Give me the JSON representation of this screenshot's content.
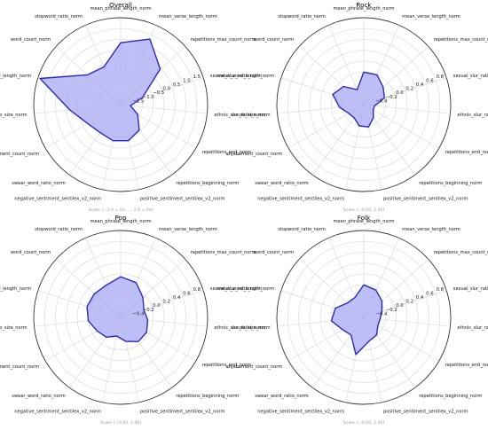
{
  "axes": [
    "mean_phrase_length_norm",
    "mean_verse_length_norm",
    "repetitions_max_count_norm",
    "sexual_slur_ratio_norm",
    "ethnic_slur_ratio_norm",
    "repetitions_end_norm",
    "repetitions_beginning_norm",
    "positive_sentiment_sentilex_v2_norm",
    "negative_sentiment_sentilex_v2_norm",
    "swear_word_ratio_norm",
    "enjabement_count_norm",
    "vocab_size_norm",
    "mean_word_length_norm",
    "word_count_norm",
    "stopword_ratio_norm"
  ],
  "chart_data": [
    {
      "type": "radar",
      "title": "Overall",
      "r_ticks": [
        "−1.5",
        "−1.0",
        "−0.5",
        "0.0",
        "0.5",
        "1.0",
        "1.5"
      ],
      "r_tick_values": [
        -1.5,
        -1.0,
        -0.5,
        0.0,
        0.5,
        1.0,
        1.5
      ],
      "rlim": [
        -2.0,
        2.0
      ],
      "scale_label": "Scale: [−2.0 = 0σ, ..., 2.0 = 0σ]",
      "grid": true,
      "series": [
        {
          "color": "#2a2ab8",
          "fill": "#a9a9f5",
          "values": [
            0.85,
            1.3,
            0.45,
            -0.95,
            -1.55,
            -1.1,
            -0.55,
            -0.3,
            -0.3,
            -0.4,
            -0.25,
            0.35,
            1.9,
            0.05,
            -0.1
          ]
        }
      ]
    },
    {
      "type": "radar",
      "title": "Rock",
      "r_ticks": [
        "−0.4",
        "−0.2",
        "0.0",
        "0.2",
        "0.4",
        "0.6",
        "0.8"
      ],
      "r_tick_values": [
        -0.4,
        -0.2,
        0.0,
        0.2,
        0.4,
        0.6,
        0.8
      ],
      "rlim": [
        -0.6,
        1.0
      ],
      "scale_label": "Scale: [−0.60, 1.00]",
      "grid": true,
      "series": [
        {
          "color": "#2a2ab8",
          "fill": "#a9a9f5",
          "values": [
            0.0,
            0.0,
            -0.12,
            -0.2,
            -0.4,
            -0.4,
            -0.3,
            -0.18,
            -0.2,
            -0.3,
            -0.28,
            -0.15,
            0.0,
            -0.1,
            -0.3
          ]
        }
      ]
    },
    {
      "type": "radar",
      "title": "Pop",
      "r_ticks": [
        "−0.4",
        "−0.2",
        "0.0",
        "0.2",
        "0.4",
        "0.6",
        "0.8"
      ],
      "r_tick_values": [
        -0.4,
        -0.2,
        0.0,
        0.2,
        0.4,
        0.6,
        0.8
      ],
      "rlim": [
        -0.6,
        1.0
      ],
      "scale_label": "Scale: [−0.60, 1.00]",
      "grid": true,
      "series": [
        {
          "color": "#2a2ab8",
          "fill": "#a9a9f5",
          "values": [
            0.15,
            0.1,
            -0.05,
            -0.15,
            -0.1,
            -0.05,
            -0.05,
            -0.15,
            -0.25,
            -0.15,
            -0.1,
            0.0,
            0.05,
            0.05,
            0.05
          ]
        }
      ]
    },
    {
      "type": "radar",
      "title": "Folk",
      "r_ticks": [
        "−0.4",
        "−0.2",
        "0.0",
        "0.2",
        "0.4",
        "0.6",
        "0.8"
      ],
      "r_tick_values": [
        -0.4,
        -0.2,
        0.0,
        0.2,
        0.4,
        0.6,
        0.8
      ],
      "rlim": [
        -0.6,
        1.0
      ],
      "scale_label": "Scale: [−0.60, 1.00]",
      "grid": true,
      "series": [
        {
          "color": "#2a2ab8",
          "fill": "#a9a9f5",
          "values": [
            0.0,
            -0.05,
            -0.15,
            -0.25,
            -0.3,
            -0.3,
            -0.2,
            -0.15,
            0.1,
            -0.2,
            -0.15,
            0.0,
            -0.05,
            -0.2,
            -0.2
          ]
        }
      ]
    }
  ]
}
